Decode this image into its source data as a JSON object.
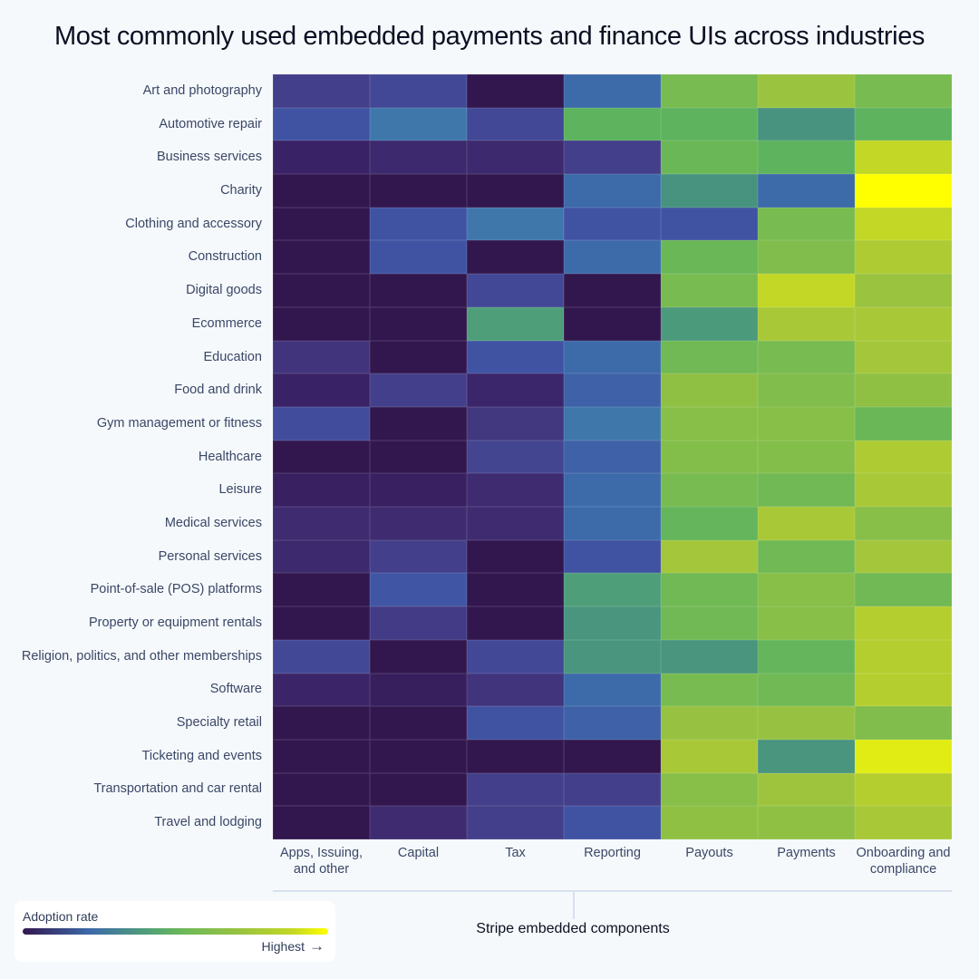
{
  "title": "Most commonly used embedded payments and finance UIs across industries",
  "axis_title": "Stripe embedded components",
  "legend": {
    "title": "Adoption rate",
    "high_label": "Highest",
    "arrow_icon": "→"
  },
  "columns": [
    "Apps, Issuing, and other",
    "Capital",
    "Tax",
    "Reporting",
    "Payouts",
    "Payments",
    "Onboarding and compliance"
  ],
  "rows": [
    "Art and photography",
    "Automotive repair",
    "Business services",
    "Charity",
    "Clothing and accessory",
    "Construction",
    "Digital goods",
    "Ecommerce",
    "Education",
    "Food and drink",
    "Gym management or fitness",
    "Healthcare",
    "Leisure",
    "Medical services",
    "Personal services",
    "Point-of-sale (POS) platforms",
    "Property or equipment rentals",
    "Religion, politics, and other memberships",
    "Software",
    "Specialty retail",
    "Ticketing and events",
    "Transportation and car rental",
    "Travel and lodging"
  ],
  "chart_data": {
    "type": "heatmap",
    "title": "Most commonly used embedded payments and finance UIs across industries",
    "xlabel": "Stripe embedded components",
    "ylabel": "",
    "colorbar": {
      "label": "Adoption rate",
      "range": [
        0,
        1
      ],
      "high_label": "Highest",
      "colormap": "viridis"
    },
    "x": [
      "Apps, Issuing, and other",
      "Capital",
      "Tax",
      "Reporting",
      "Payouts",
      "Payments",
      "Onboarding and compliance"
    ],
    "y": [
      "Art and photography",
      "Automotive repair",
      "Business services",
      "Charity",
      "Clothing and accessory",
      "Construction",
      "Digital goods",
      "Ecommerce",
      "Education",
      "Food and drink",
      "Gym management or fitness",
      "Healthcare",
      "Leisure",
      "Medical services",
      "Personal services",
      "Point-of-sale (POS) platforms",
      "Property or equipment rentals",
      "Religion, politics, and other memberships",
      "Software",
      "Specialty retail",
      "Ticketing and events",
      "Transportation and car rental",
      "Travel and lodging"
    ],
    "values": [
      [
        0.15,
        0.18,
        0.0,
        0.3,
        0.66,
        0.75,
        0.66
      ],
      [
        0.22,
        0.35,
        0.18,
        0.58,
        0.58,
        0.45,
        0.58
      ],
      [
        0.05,
        0.08,
        0.08,
        0.15,
        0.62,
        0.58,
        0.88
      ],
      [
        0.0,
        0.0,
        0.0,
        0.3,
        0.45,
        0.3,
        1.0
      ],
      [
        0.0,
        0.22,
        0.35,
        0.22,
        0.22,
        0.66,
        0.88
      ],
      [
        0.0,
        0.22,
        0.0,
        0.3,
        0.62,
        0.68,
        0.82
      ],
      [
        0.0,
        0.0,
        0.18,
        0.0,
        0.66,
        0.88,
        0.75
      ],
      [
        0.0,
        0.0,
        0.5,
        0.0,
        0.48,
        0.8,
        0.8
      ],
      [
        0.12,
        0.0,
        0.22,
        0.3,
        0.64,
        0.66,
        0.78
      ],
      [
        0.05,
        0.15,
        0.07,
        0.27,
        0.72,
        0.68,
        0.72
      ],
      [
        0.2,
        0.0,
        0.13,
        0.35,
        0.7,
        0.7,
        0.62
      ],
      [
        0.0,
        0.0,
        0.17,
        0.27,
        0.69,
        0.69,
        0.82
      ],
      [
        0.04,
        0.04,
        0.09,
        0.3,
        0.66,
        0.64,
        0.8
      ],
      [
        0.09,
        0.09,
        0.09,
        0.3,
        0.6,
        0.8,
        0.7
      ],
      [
        0.08,
        0.15,
        0.0,
        0.22,
        0.78,
        0.64,
        0.78
      ],
      [
        0.0,
        0.23,
        0.0,
        0.5,
        0.64,
        0.7,
        0.64
      ],
      [
        0.0,
        0.14,
        0.0,
        0.46,
        0.64,
        0.7,
        0.84
      ],
      [
        0.18,
        0.0,
        0.18,
        0.46,
        0.46,
        0.6,
        0.84
      ],
      [
        0.06,
        0.03,
        0.12,
        0.3,
        0.66,
        0.64,
        0.84
      ],
      [
        0.0,
        0.0,
        0.22,
        0.27,
        0.74,
        0.74,
        0.68
      ],
      [
        0.0,
        0.0,
        0.0,
        0.0,
        0.8,
        0.46,
        0.95
      ],
      [
        0.0,
        0.0,
        0.15,
        0.15,
        0.7,
        0.76,
        0.84
      ],
      [
        0.0,
        0.09,
        0.15,
        0.22,
        0.72,
        0.72,
        0.8
      ]
    ]
  }
}
